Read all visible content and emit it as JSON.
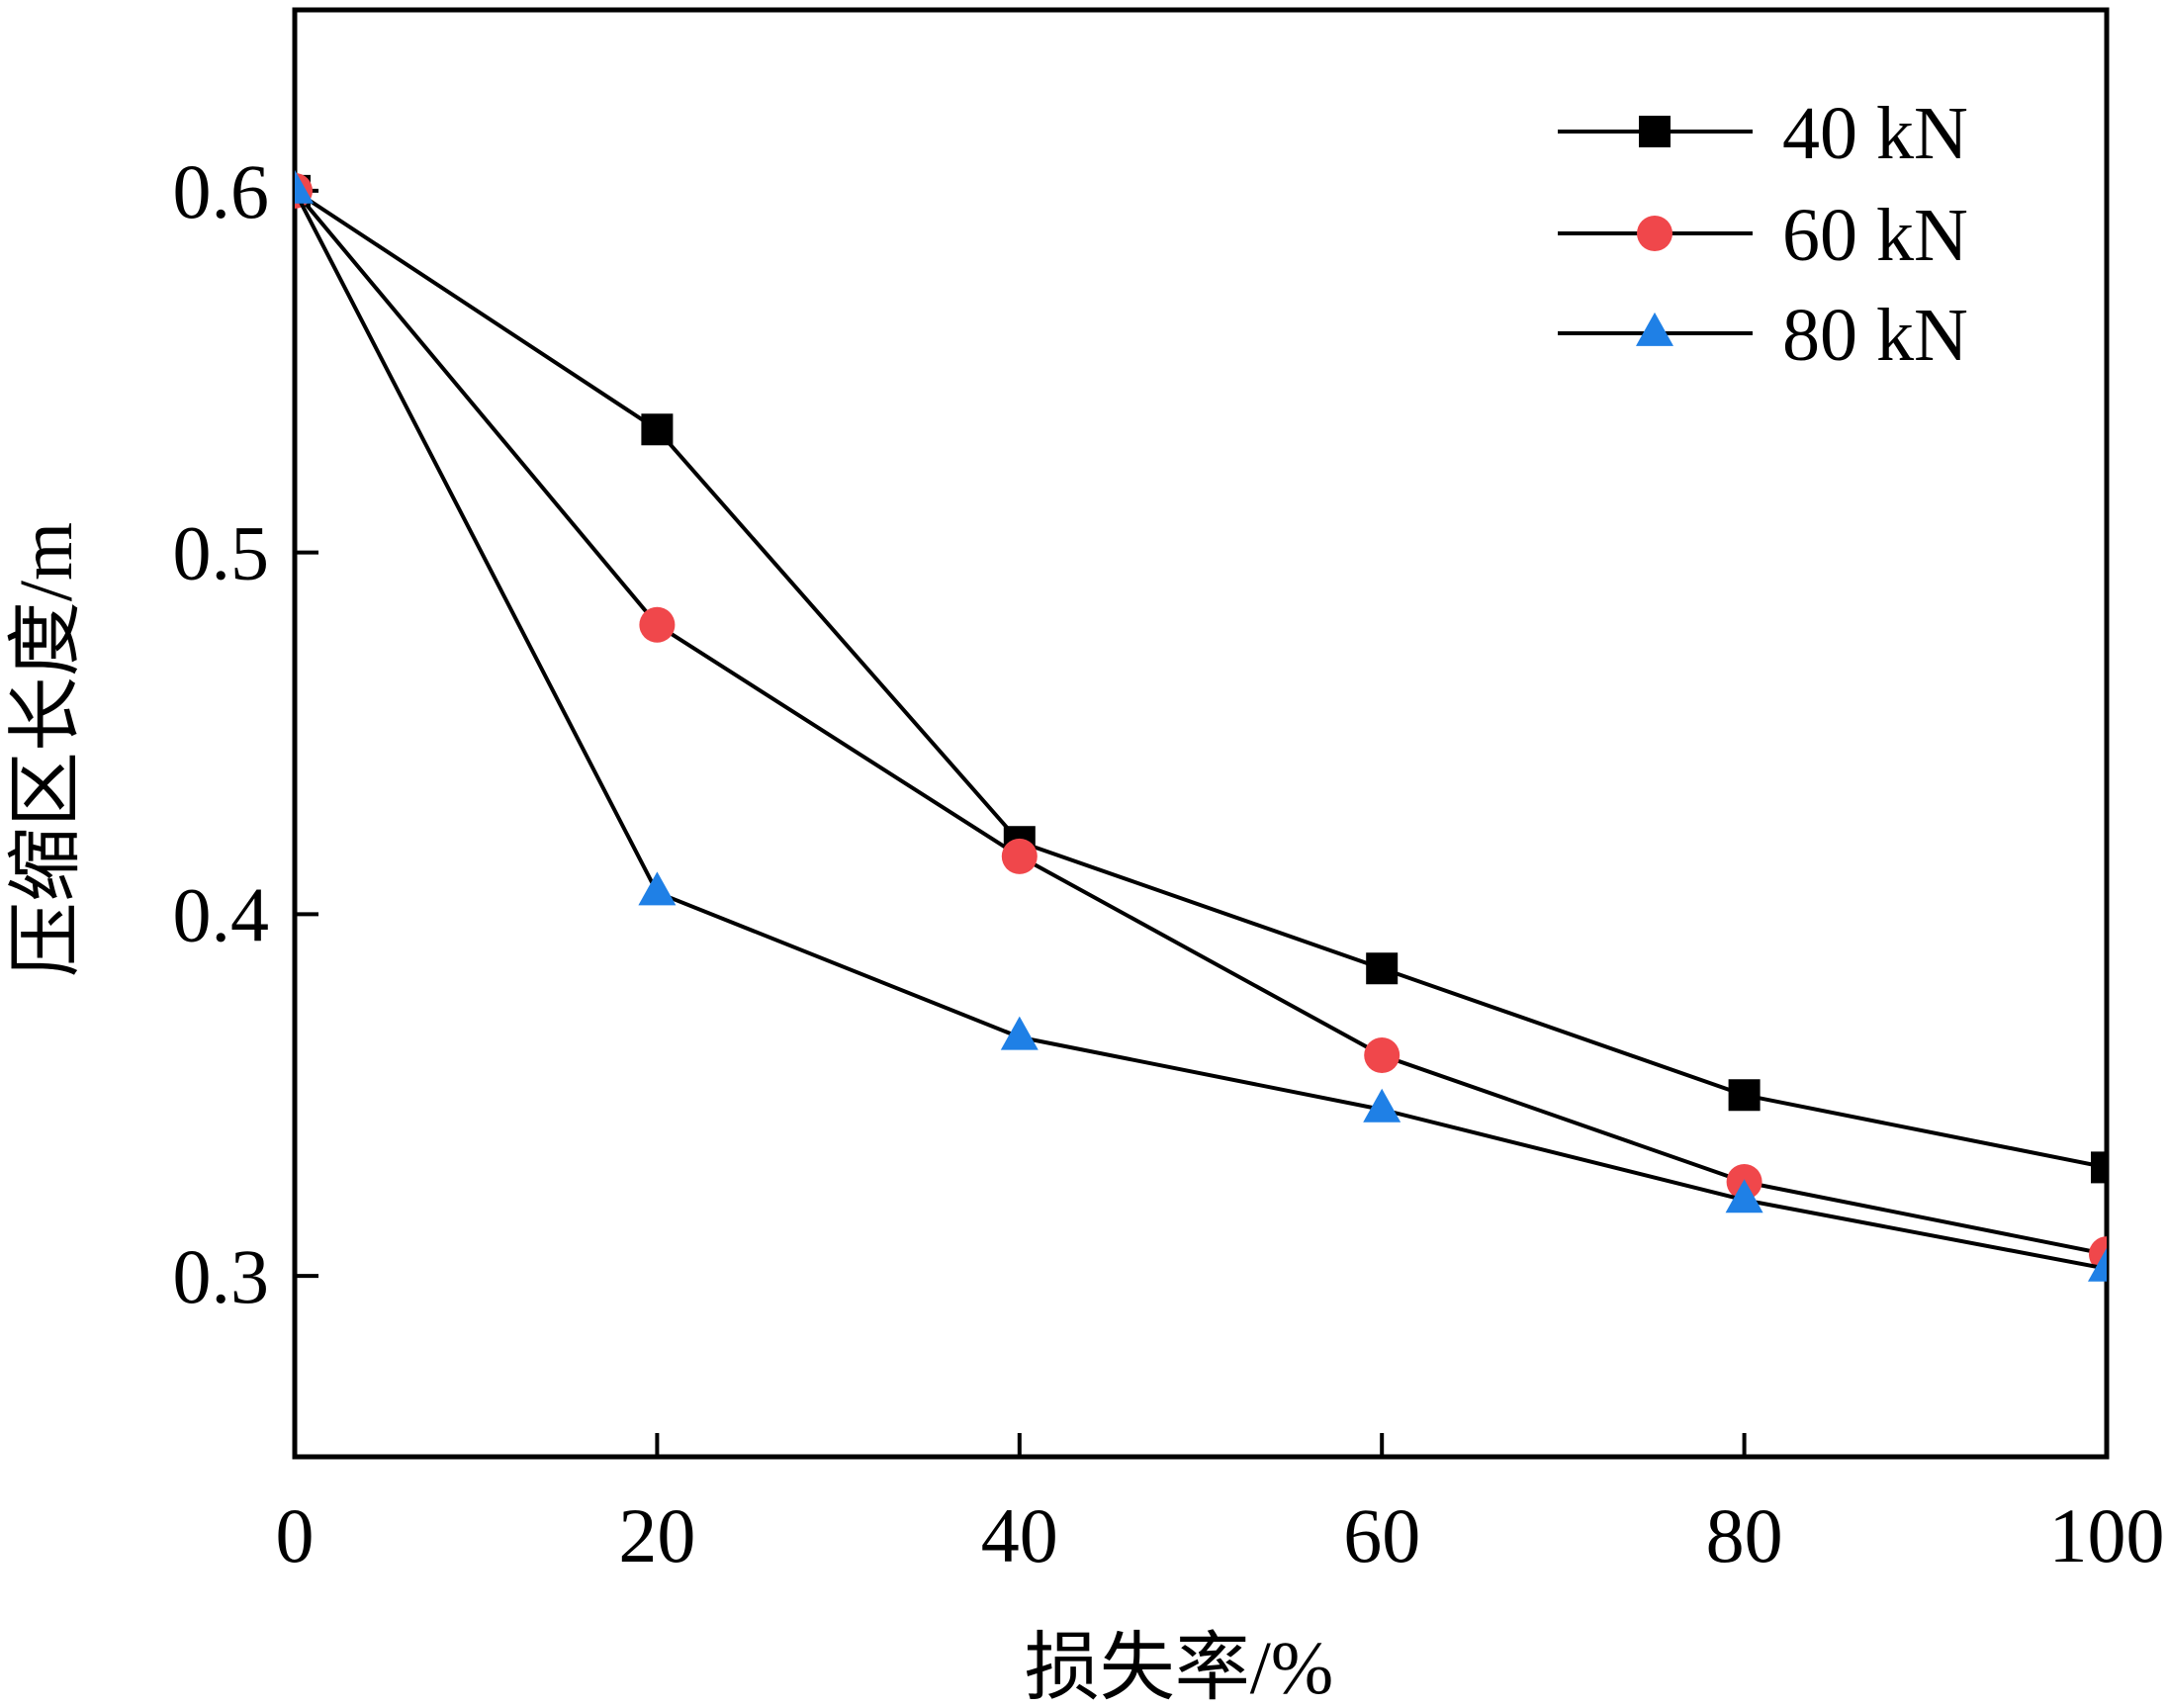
{
  "chart_data": {
    "type": "line",
    "title": "",
    "xlabel": "损失率/%",
    "ylabel": "压缩区长度/m",
    "xlim": [
      0,
      100
    ],
    "ylim": [
      0.25,
      0.65
    ],
    "xticks": [
      0,
      20,
      40,
      60,
      80,
      100
    ],
    "yticks": [
      0.3,
      0.4,
      0.5,
      0.6
    ],
    "xtick_labels": [
      "0",
      "20",
      "40",
      "60",
      "80",
      "100"
    ],
    "ytick_labels": [
      "0.3",
      "0.4",
      "0.5",
      "0.6"
    ],
    "grid": false,
    "legend_position": "top-right",
    "x": [
      0,
      20,
      40,
      60,
      80,
      100
    ],
    "series": [
      {
        "name": "40 kN",
        "marker": "square",
        "color": "#000000",
        "values": [
          0.6,
          0.534,
          0.42,
          0.385,
          0.35,
          0.33
        ]
      },
      {
        "name": "60 kN",
        "marker": "circle",
        "color": "#f0474b",
        "values": [
          0.6,
          0.48,
          0.416,
          0.361,
          0.326,
          0.306
        ]
      },
      {
        "name": "80 kN",
        "marker": "triangle",
        "color": "#1f80e6",
        "values": [
          0.6,
          0.406,
          0.366,
          0.346,
          0.321,
          0.302
        ]
      }
    ]
  }
}
